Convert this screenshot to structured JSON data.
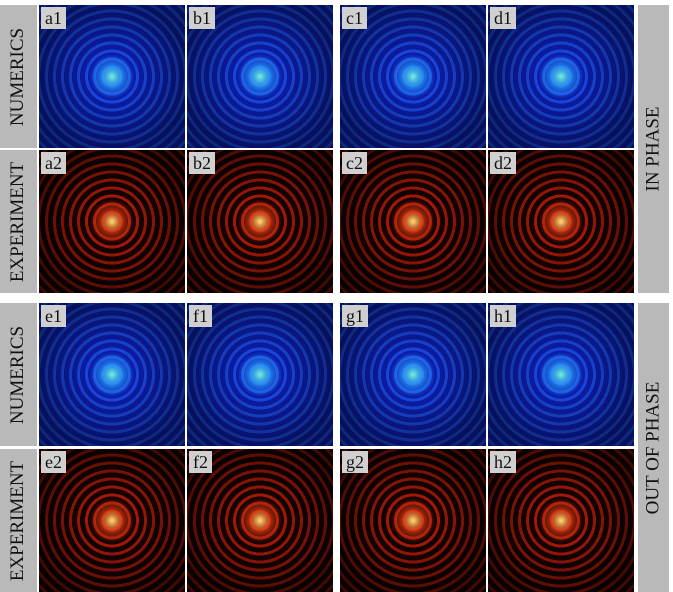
{
  "row_labels": [
    "NUMERICS",
    "EXPERIMENT",
    "NUMERICS",
    "EXPERIMENT"
  ],
  "side_labels": [
    "IN PHASE",
    "OUT OF PHASE"
  ],
  "panels": [
    [
      "a1",
      "b1",
      "c1",
      "d1"
    ],
    [
      "a2",
      "b2",
      "c2",
      "d2"
    ],
    [
      "e1",
      "f1",
      "g1",
      "h1"
    ],
    [
      "e2",
      "f2",
      "g2",
      "h2"
    ]
  ]
}
